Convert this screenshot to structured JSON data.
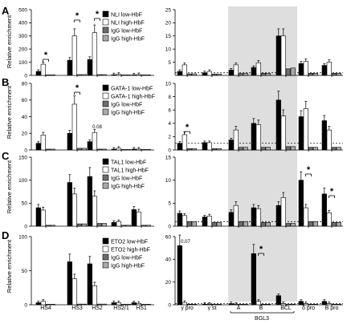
{
  "figure": {
    "series_colors": {
      "black": "#000000",
      "white": "#ffffff",
      "darkgray": "#6d6d6d",
      "lightgray": "#a9a9a9"
    },
    "shade_color": "#dedede"
  },
  "chart_data": [
    {
      "type": "bar",
      "panel": "A",
      "ylabel": "Relative enrichment",
      "left_ylim": [
        0,
        500
      ],
      "left_yticks": [
        0,
        100,
        200,
        300,
        400,
        500
      ],
      "right_ylim": [
        0,
        25
      ],
      "right_yticks": [
        5,
        10,
        15,
        20,
        25
      ],
      "legend": [
        "NLI low-HbF",
        "NLI high-HbF",
        "IgG low-HbF",
        "IgG high-HbF"
      ],
      "left_categories": [
        "HS4",
        "HS3",
        "HS2",
        "HS2/1",
        "HS1"
      ],
      "left_values": [
        [
          30,
          85,
          4,
          4
        ],
        [
          115,
          300,
          6,
          6
        ],
        [
          120,
          325,
          6,
          6
        ],
        [
          5,
          8,
          3,
          3
        ],
        [
          4,
          6,
          3,
          3
        ]
      ],
      "right_categories": [
        "γ pro",
        "γ st",
        "A",
        "B",
        "BCL",
        "δ pro",
        "B pro"
      ],
      "right_values": [
        [
          1.5,
          4,
          0.6,
          0.6
        ],
        [
          1,
          1.5,
          0.5,
          0.5
        ],
        [
          2,
          4,
          0.7,
          0.7
        ],
        [
          3,
          4.8,
          0.8,
          0.8
        ],
        [
          15,
          15,
          2.5,
          2.8
        ],
        [
          4.5,
          5.3,
          0.8,
          0.8
        ],
        [
          3.8,
          5,
          0.8,
          0.8
        ]
      ],
      "significance": [
        "*",
        "*",
        "*"
      ],
      "annotations": []
    },
    {
      "type": "bar",
      "panel": "B",
      "ylabel": "Relative enrichment",
      "left_ylim": [
        0,
        80
      ],
      "left_yticks": [
        0,
        20,
        40,
        60,
        80
      ],
      "right_ylim": [
        0,
        10
      ],
      "right_yticks": [
        0,
        2,
        4,
        6,
        8,
        10
      ],
      "legend": [
        "GATA-1 low-HbF",
        "GATA-1 high-HbF",
        "IgG low-HbF",
        "IgG high-HbF"
      ],
      "left_categories": [
        "HS4",
        "HS3",
        "HS2",
        "HS2/1",
        "HS1"
      ],
      "left_values": [
        [
          8,
          18,
          1,
          1
        ],
        [
          20,
          55,
          2,
          2
        ],
        [
          10,
          21,
          1,
          1
        ],
        [
          1,
          2,
          0.5,
          0.5
        ],
        [
          1,
          1,
          0.5,
          0.5
        ]
      ],
      "right_values": [
        [
          1,
          2.3,
          0.2,
          0.2
        ],
        [
          1.1,
          1.1,
          0.2,
          0.2
        ],
        [
          1.5,
          3,
          0.4,
          0.4
        ],
        [
          4,
          3.8,
          0.4,
          0.4
        ],
        [
          7.5,
          5.1,
          0.5,
          0.5
        ],
        [
          5,
          6.2,
          0.4,
          0.4
        ],
        [
          4.4,
          3,
          0.4,
          0.4
        ]
      ],
      "significance": [
        "*",
        "*"
      ],
      "annotations": [
        "0.08"
      ]
    },
    {
      "type": "bar",
      "panel": "C",
      "ylabel": "Relative enrichment",
      "left_ylim": [
        0,
        150
      ],
      "left_yticks": [
        0,
        50,
        100,
        150
      ],
      "right_ylim": [
        0,
        15
      ],
      "right_yticks": [
        0,
        5,
        10,
        15
      ],
      "legend": [
        "TAL1 low-HbF",
        "TAL1 high-HbF",
        "IgG low-HbF",
        "IgG high-HbF"
      ],
      "left_categories": [
        "HS4",
        "HS3",
        "HS2",
        "HS2/1",
        "HS1"
      ],
      "left_values": [
        [
          40,
          35,
          2,
          2
        ],
        [
          95,
          70,
          5,
          5
        ],
        [
          108,
          65,
          6,
          6
        ],
        [
          8,
          10,
          2,
          2
        ],
        [
          36,
          31,
          2,
          2
        ]
      ],
      "right_values": [
        [
          2.8,
          2.3,
          1,
          1
        ],
        [
          2,
          2.2,
          0.8,
          0.8
        ],
        [
          3,
          4.5,
          1,
          1
        ],
        [
          4,
          3.8,
          0.8,
          0.8
        ],
        [
          4.5,
          6.2,
          0.6,
          0.6
        ],
        [
          10,
          4,
          1,
          1
        ],
        [
          7,
          2.9,
          0.8,
          0.8
        ]
      ],
      "significance": [
        "*",
        "*"
      ],
      "annotations": []
    },
    {
      "type": "bar",
      "panel": "D",
      "ylabel": "Relative enrichment",
      "left_ylim": [
        0,
        100
      ],
      "left_yticks": [
        0,
        50,
        100
      ],
      "right_ylim": [
        0,
        60
      ],
      "right_yticks": [
        0,
        20,
        40,
        60
      ],
      "legend": [
        "ETO2 low-HbF",
        "ETO2 high-HbF",
        "IgG low-HbF",
        "IgG high-HbF"
      ],
      "left_categories": [
        "HS4",
        "HS3",
        "HS2",
        "HS2/1",
        "HS1"
      ],
      "left_values": [
        [
          3,
          5,
          0.5,
          0.5
        ],
        [
          63,
          38,
          1,
          1
        ],
        [
          60,
          28,
          1,
          1
        ],
        [
          3,
          3,
          0.5,
          0.5
        ],
        [
          3,
          2,
          0.5,
          0.5
        ]
      ],
      "right_values": [
        [
          52,
          2,
          0.5,
          0.5
        ],
        [
          0.5,
          0.5,
          0.3,
          0.3
        ],
        [
          1,
          0.5,
          0.3,
          0.3
        ],
        [
          45,
          3,
          0.5,
          0.5
        ],
        [
          8,
          1,
          0.3,
          0.3
        ],
        [
          3,
          1,
          0.3,
          0.3
        ],
        [
          3,
          1,
          0.3,
          0.3
        ]
      ],
      "right_categories_label_group": "BGL3",
      "significance": [
        "*"
      ],
      "annotations": [
        "0.07"
      ]
    }
  ]
}
